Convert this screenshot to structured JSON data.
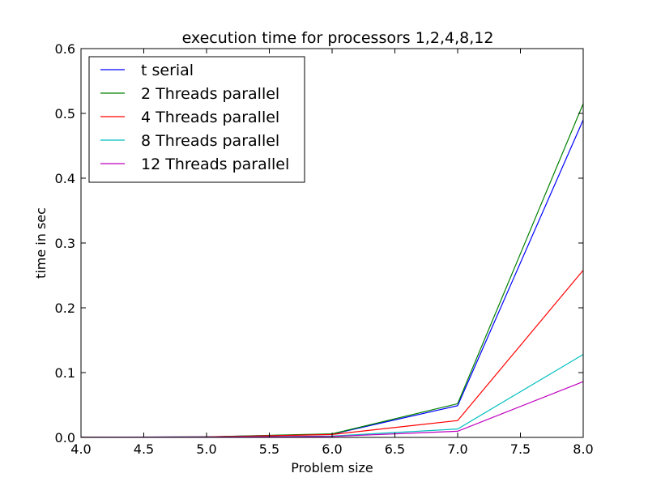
{
  "chart_data": {
    "type": "line",
    "title": "execution time for processors 1,2,4,8,12",
    "xlabel": "Problem size",
    "ylabel": "time in sec",
    "xlim": [
      4.0,
      8.0
    ],
    "ylim": [
      0.0,
      0.6
    ],
    "xticks": [
      "4.0",
      "4.5",
      "5.0",
      "5.5",
      "6.0",
      "6.5",
      "7.0",
      "7.5",
      "8.0"
    ],
    "yticks": [
      "0.0",
      "0.1",
      "0.2",
      "0.3",
      "0.4",
      "0.5",
      "0.6"
    ],
    "grid": false,
    "legend_position": "top-left",
    "x": [
      4,
      5,
      6,
      7,
      8
    ],
    "series": [
      {
        "name": "t serial",
        "color": "#0000ff",
        "values": [
          0.0003,
          0.0008,
          0.005,
          0.049,
          0.49
        ]
      },
      {
        "name": "2 Threads parallel",
        "color": "#008000",
        "values": [
          0.0003,
          0.0008,
          0.0055,
          0.052,
          0.515
        ]
      },
      {
        "name": "4 Threads parallel",
        "color": "#ff0000",
        "values": [
          0.0002,
          0.0006,
          0.0045,
          0.026,
          0.258
        ]
      },
      {
        "name": "8 Threads parallel",
        "color": "#00bfbf",
        "values": [
          0.0001,
          0.0004,
          0.002,
          0.013,
          0.128
        ]
      },
      {
        "name": "12 Threads parallel",
        "color": "#bf00bf",
        "values": [
          0.0001,
          0.0003,
          0.0015,
          0.0095,
          0.086
        ]
      }
    ]
  }
}
